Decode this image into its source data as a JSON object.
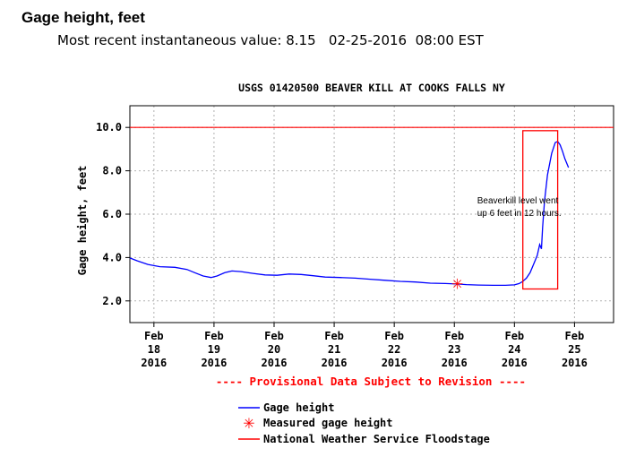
{
  "header": {
    "title": "Gage height, feet",
    "recent_value": "Most recent instantaneous value: 8.15   02-25-2016  08:00 EST"
  },
  "chart_data": {
    "type": "line",
    "title": "USGS 01420500 BEAVER KILL AT COOKS FALLS NY",
    "ylabel": "Gage height, feet",
    "xlabel": "",
    "ylim": [
      1,
      11
    ],
    "xlim": [
      17.6,
      25.65
    ],
    "yticks": [
      2.0,
      4.0,
      6.0,
      8.0,
      10.0
    ],
    "ytick_labels": [
      "2.0",
      "4.0",
      "6.0",
      "8.0",
      "10.0"
    ],
    "xticks": [
      {
        "x": 18,
        "lines": [
          "Feb",
          "18",
          "2016"
        ]
      },
      {
        "x": 19,
        "lines": [
          "Feb",
          "19",
          "2016"
        ]
      },
      {
        "x": 20,
        "lines": [
          "Feb",
          "20",
          "2016"
        ]
      },
      {
        "x": 21,
        "lines": [
          "Feb",
          "21",
          "2016"
        ]
      },
      {
        "x": 22,
        "lines": [
          "Feb",
          "22",
          "2016"
        ]
      },
      {
        "x": 23,
        "lines": [
          "Feb",
          "23",
          "2016"
        ]
      },
      {
        "x": 24,
        "lines": [
          "Feb",
          "24",
          "2016"
        ]
      },
      {
        "x": 25,
        "lines": [
          "Feb",
          "25",
          "2016"
        ]
      }
    ],
    "grid": "dashed",
    "series": [
      {
        "name": "Gage height",
        "color": "#0000ff",
        "x": [
          17.6,
          17.72,
          17.9,
          18.1,
          18.35,
          18.55,
          18.68,
          18.82,
          18.95,
          19.05,
          19.18,
          19.3,
          19.45,
          19.65,
          19.85,
          20.05,
          20.25,
          20.45,
          20.65,
          20.85,
          21.1,
          21.35,
          21.6,
          21.85,
          22.1,
          22.35,
          22.6,
          22.85,
          23.05,
          23.2,
          23.4,
          23.65,
          23.85,
          24.0,
          24.08,
          24.14,
          24.2,
          24.26,
          24.32,
          24.38,
          24.42,
          24.45,
          24.47,
          24.5,
          24.55,
          24.62,
          24.68,
          24.72,
          24.76,
          24.8,
          24.84,
          24.9
        ],
        "y": [
          3.98,
          3.85,
          3.68,
          3.58,
          3.55,
          3.45,
          3.3,
          3.15,
          3.08,
          3.15,
          3.3,
          3.38,
          3.35,
          3.27,
          3.2,
          3.18,
          3.24,
          3.22,
          3.16,
          3.1,
          3.08,
          3.05,
          3.0,
          2.95,
          2.9,
          2.87,
          2.82,
          2.8,
          2.78,
          2.75,
          2.73,
          2.72,
          2.72,
          2.74,
          2.8,
          2.9,
          3.05,
          3.3,
          3.7,
          4.1,
          4.6,
          4.4,
          5.4,
          6.6,
          7.8,
          8.8,
          9.3,
          9.35,
          9.2,
          8.9,
          8.55,
          8.15
        ]
      },
      {
        "name": "Measured gage height",
        "color": "#ff0000",
        "marker": "*",
        "x": [
          23.05
        ],
        "y": [
          2.8
        ]
      },
      {
        "name": "National Weather Service Floodstage",
        "color": "#ff0000",
        "y_constant": 10.0
      }
    ],
    "highlight_box": {
      "x0": 24.14,
      "x1": 24.72,
      "y0": 2.55,
      "y1": 9.85,
      "color": "#ff0000"
    },
    "annotation": {
      "lines": [
        "Beaverkill level went",
        "up 6 feet in 12 hours."
      ],
      "x": 23.38,
      "y": 6.5
    },
    "notice": "---- Provisional Data Subject to Revision ----",
    "legend": [
      "Gage height",
      "Measured gage height",
      "National Weather Service Floodstage"
    ],
    "legend_position": "bottom"
  }
}
